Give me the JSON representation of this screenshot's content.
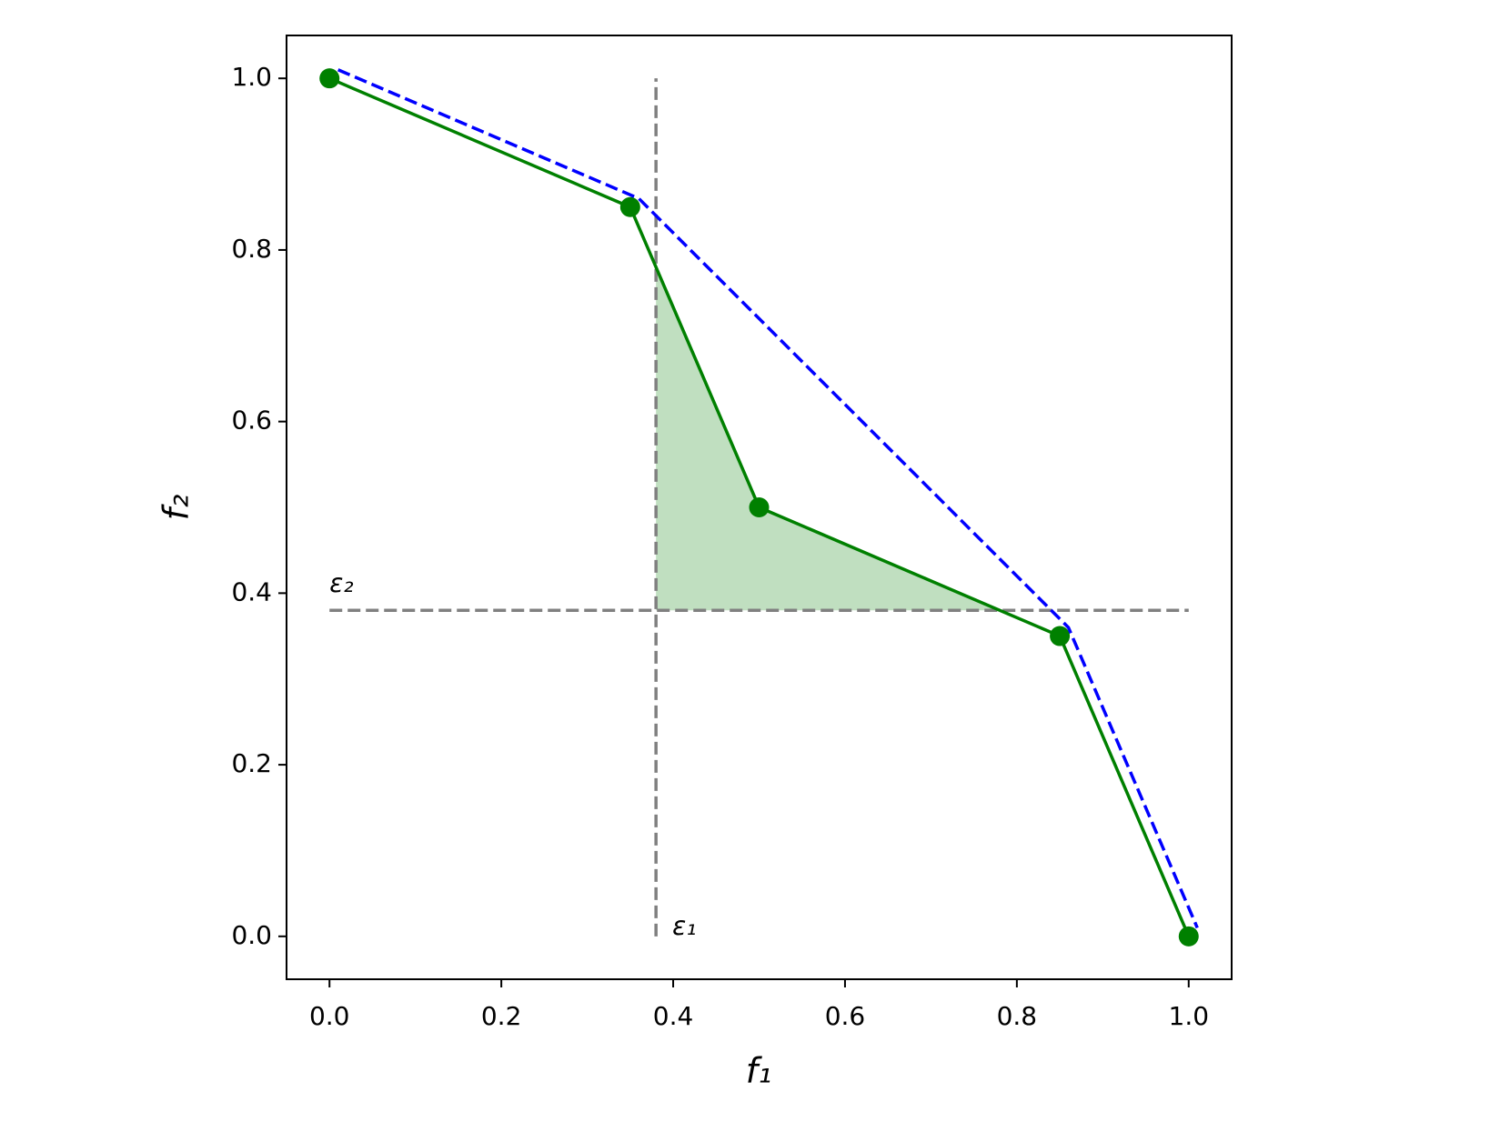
{
  "chart_data": {
    "type": "line",
    "xlabel": "f₁",
    "ylabel": "f₂",
    "xlim": [
      -0.05,
      1.05
    ],
    "ylim": [
      -0.05,
      1.05
    ],
    "xticks": [
      {
        "value": 0,
        "label": "0.0"
      },
      0.2,
      0.4,
      0.6,
      0.8,
      {
        "value": 1,
        "label": "1.0"
      }
    ],
    "yticks": [
      {
        "value": 0,
        "label": "0.0"
      },
      0.2,
      0.4,
      0.6,
      0.8,
      {
        "value": 1,
        "label": "1.0"
      }
    ],
    "grid": false,
    "series": [
      {
        "color": "#008000",
        "marker": true,
        "dashed": false,
        "x": [
          0,
          0.35,
          0.5,
          0.85,
          1
        ],
        "values": [
          1,
          0.85,
          0.5,
          0.35,
          0
        ]
      },
      {
        "color": "#0000ff",
        "marker": false,
        "dashed": true,
        "x": [
          0.01,
          0.36,
          0.86,
          1.01
        ],
        "values": [
          1.01,
          0.86,
          0.36,
          0.01
        ]
      }
    ],
    "fill": {
      "color": "#c0dfc0",
      "x": [
        0.38,
        0.38,
        0.5,
        0.78
      ],
      "values": [
        0.38,
        0.78,
        0.5,
        0.38
      ]
    },
    "thresholds": [
      {
        "axis": "x",
        "value": 0.38,
        "span": [
          0,
          1
        ],
        "label": "ε₁",
        "color": "#808080"
      },
      {
        "axis": "y",
        "value": 0.38,
        "span": [
          0,
          1
        ],
        "label": "ε₂",
        "color": "#808080"
      }
    ]
  }
}
